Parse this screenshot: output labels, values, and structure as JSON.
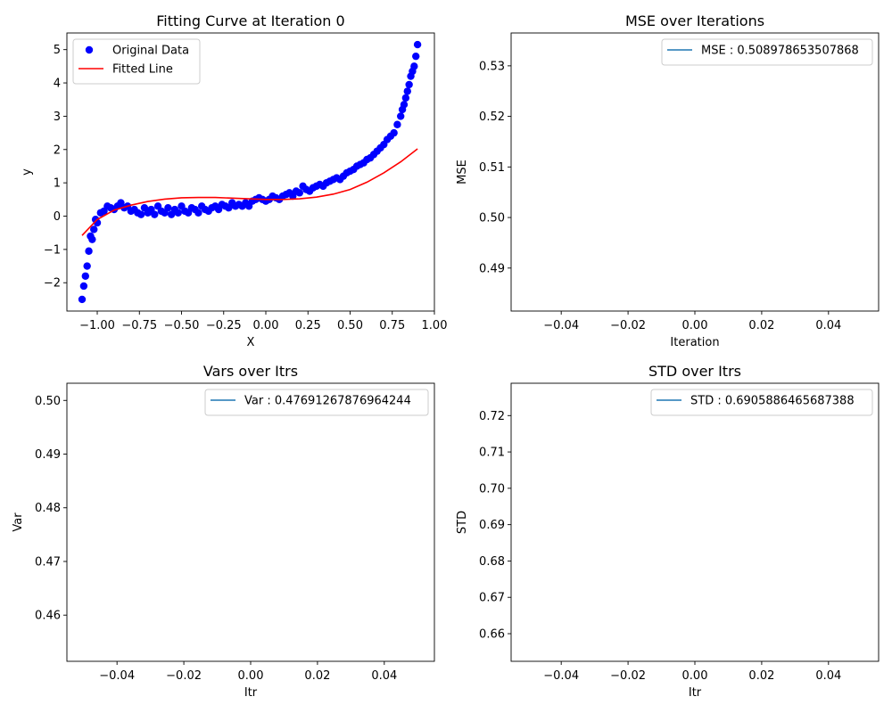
{
  "chart_data": [
    {
      "type": "scatter",
      "title": "Fitting Curve at Iteration 0",
      "xlabel": "X",
      "ylabel": "y",
      "xlim": [
        -1.18,
        1.0
      ],
      "ylim": [
        -2.85,
        5.5
      ],
      "xticks": [
        -1.0,
        -0.75,
        -0.5,
        -0.25,
        0.0,
        0.25,
        0.5,
        0.75,
        1.0
      ],
      "xtick_labels": [
        "−1.00",
        "−0.75",
        "−0.50",
        "−0.25",
        "0.00",
        "0.25",
        "0.50",
        "0.75",
        "1.00"
      ],
      "yticks": [
        -2,
        -1,
        0,
        1,
        2,
        3,
        4,
        5
      ],
      "ytick_labels": [
        "−2",
        "−1",
        "0",
        "1",
        "2",
        "3",
        "4",
        "5"
      ],
      "legend": "upper-left",
      "grid": false,
      "series": [
        {
          "name": "Original Data",
          "kind": "scatter",
          "color": "#0000ff",
          "x": [
            -1.09,
            -1.08,
            -1.07,
            -1.06,
            -1.05,
            -1.04,
            -1.03,
            -1.02,
            -1.01,
            -1.0,
            -0.98,
            -0.96,
            -0.94,
            -0.92,
            -0.9,
            -0.88,
            -0.86,
            -0.84,
            -0.82,
            -0.8,
            -0.78,
            -0.76,
            -0.74,
            -0.72,
            -0.7,
            -0.68,
            -0.66,
            -0.64,
            -0.62,
            -0.6,
            -0.58,
            -0.56,
            -0.54,
            -0.52,
            -0.5,
            -0.48,
            -0.46,
            -0.44,
            -0.42,
            -0.4,
            -0.38,
            -0.36,
            -0.34,
            -0.32,
            -0.3,
            -0.28,
            -0.26,
            -0.24,
            -0.22,
            -0.2,
            -0.18,
            -0.16,
            -0.14,
            -0.12,
            -0.1,
            -0.08,
            -0.06,
            -0.04,
            -0.02,
            0.0,
            0.02,
            0.04,
            0.06,
            0.08,
            0.1,
            0.12,
            0.14,
            0.16,
            0.18,
            0.2,
            0.22,
            0.24,
            0.26,
            0.28,
            0.3,
            0.32,
            0.34,
            0.36,
            0.38,
            0.4,
            0.42,
            0.44,
            0.46,
            0.48,
            0.5,
            0.52,
            0.54,
            0.56,
            0.58,
            0.6,
            0.62,
            0.64,
            0.66,
            0.68,
            0.7,
            0.72,
            0.74,
            0.76,
            0.78,
            0.8,
            0.81,
            0.82,
            0.83,
            0.84,
            0.85,
            0.86,
            0.87,
            0.88,
            0.89,
            0.9
          ],
          "y": [
            -2.5,
            -2.1,
            -1.8,
            -1.5,
            -1.05,
            -0.6,
            -0.7,
            -0.4,
            -0.1,
            -0.2,
            0.1,
            0.15,
            0.3,
            0.25,
            0.2,
            0.3,
            0.4,
            0.25,
            0.3,
            0.15,
            0.2,
            0.1,
            0.05,
            0.25,
            0.1,
            0.2,
            0.05,
            0.3,
            0.15,
            0.1,
            0.25,
            0.05,
            0.2,
            0.1,
            0.3,
            0.15,
            0.1,
            0.25,
            0.2,
            0.1,
            0.3,
            0.2,
            0.15,
            0.25,
            0.3,
            0.2,
            0.35,
            0.3,
            0.25,
            0.4,
            0.3,
            0.35,
            0.3,
            0.4,
            0.3,
            0.45,
            0.5,
            0.55,
            0.5,
            0.45,
            0.5,
            0.6,
            0.55,
            0.5,
            0.6,
            0.65,
            0.7,
            0.6,
            0.75,
            0.7,
            0.9,
            0.8,
            0.75,
            0.85,
            0.9,
            0.95,
            0.9,
            1.0,
            1.05,
            1.1,
            1.15,
            1.1,
            1.2,
            1.3,
            1.35,
            1.4,
            1.5,
            1.55,
            1.6,
            1.7,
            1.75,
            1.85,
            1.95,
            2.05,
            2.15,
            2.3,
            2.4,
            2.5,
            2.75,
            3.0,
            3.2,
            3.35,
            3.55,
            3.75,
            3.95,
            4.2,
            4.35,
            4.5,
            4.8,
            5.15
          ]
        },
        {
          "name": "Fitted Line",
          "kind": "line",
          "color": "#ff0000",
          "x": [
            -1.09,
            -1.0,
            -0.9,
            -0.8,
            -0.7,
            -0.6,
            -0.5,
            -0.4,
            -0.3,
            -0.2,
            -0.1,
            0.0,
            0.1,
            0.2,
            0.3,
            0.4,
            0.5,
            0.6,
            0.7,
            0.8,
            0.9
          ],
          "y": [
            -0.58,
            -0.1,
            0.18,
            0.33,
            0.44,
            0.51,
            0.55,
            0.56,
            0.56,
            0.54,
            0.52,
            0.5,
            0.5,
            0.52,
            0.57,
            0.66,
            0.8,
            1.02,
            1.3,
            1.63,
            2.02
          ]
        }
      ]
    },
    {
      "type": "line",
      "title": "MSE over Iterations",
      "xlabel": "Iteration",
      "ylabel": "MSE",
      "xlim": [
        -0.055,
        0.055
      ],
      "ylim": [
        0.4815,
        0.5365
      ],
      "xticks": [
        -0.04,
        -0.02,
        0.0,
        0.02,
        0.04
      ],
      "xtick_labels": [
        "−0.04",
        "−0.02",
        "0.00",
        "0.02",
        "0.04"
      ],
      "yticks": [
        0.49,
        0.5,
        0.51,
        0.52,
        0.53
      ],
      "ytick_labels": [
        "0.49",
        "0.50",
        "0.51",
        "0.52",
        "0.53"
      ],
      "legend": "upper-right",
      "grid": false,
      "series": [
        {
          "name": "MSE : 0.508978653507868",
          "kind": "line",
          "color": "#1f77b4",
          "x": [
            0
          ],
          "y": [
            0.508978653507868
          ]
        }
      ]
    },
    {
      "type": "line",
      "title": "Vars over Itrs",
      "xlabel": "Itr",
      "ylabel": "Var",
      "xlim": [
        -0.055,
        0.055
      ],
      "ylim": [
        0.4514,
        0.5032
      ],
      "xticks": [
        -0.04,
        -0.02,
        0.0,
        0.02,
        0.04
      ],
      "xtick_labels": [
        "−0.04",
        "−0.02",
        "0.00",
        "0.02",
        "0.04"
      ],
      "yticks": [
        0.46,
        0.47,
        0.48,
        0.49,
        0.5
      ],
      "ytick_labels": [
        "0.46",
        "0.47",
        "0.48",
        "0.49",
        "0.50"
      ],
      "legend": "upper-right",
      "grid": false,
      "series": [
        {
          "name": "Var : 0.47691267876964244",
          "kind": "line",
          "color": "#1f77b4",
          "x": [
            0
          ],
          "y": [
            0.47691267876964244
          ]
        }
      ]
    },
    {
      "type": "line",
      "title": "STD over Itrs",
      "xlabel": "Itr",
      "ylabel": "STD",
      "xlim": [
        -0.055,
        0.055
      ],
      "ylim": [
        0.6524,
        0.7289
      ],
      "xticks": [
        -0.04,
        -0.02,
        0.0,
        0.02,
        0.04
      ],
      "xtick_labels": [
        "−0.04",
        "−0.02",
        "0.00",
        "0.02",
        "0.04"
      ],
      "yticks": [
        0.66,
        0.67,
        0.68,
        0.69,
        0.7,
        0.71,
        0.72
      ],
      "ytick_labels": [
        "0.66",
        "0.67",
        "0.68",
        "0.69",
        "0.70",
        "0.71",
        "0.72"
      ],
      "legend": "upper-right",
      "grid": false,
      "series": [
        {
          "name": "STD : 0.6905886465687388",
          "kind": "line",
          "color": "#1f77b4",
          "x": [
            0
          ],
          "y": [
            0.6905886465687388
          ]
        }
      ]
    }
  ]
}
